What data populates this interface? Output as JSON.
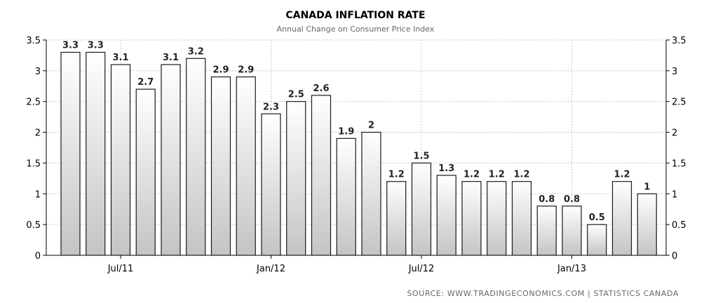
{
  "chart_data": {
    "type": "bar",
    "title": "CANADA INFLATION RATE",
    "subtitle": "Annual Change on Consumer Price Index",
    "source": "SOURCE:  WWW.TRADINGECONOMICS.COM  |  STATISTICS  CANADA",
    "ylim": [
      0,
      3.5
    ],
    "yticks": [
      0,
      0.5,
      1,
      1.5,
      2,
      2.5,
      3,
      3.5
    ],
    "ytick_labels": [
      "0",
      "0.5",
      "1",
      "1.5",
      "2",
      "2.5",
      "3",
      "3.5"
    ],
    "categories": [
      "May/11",
      "Jun/11",
      "Jul/11",
      "Aug/11",
      "Sep/11",
      "Oct/11",
      "Nov/11",
      "Dec/11",
      "Jan/12",
      "Feb/12",
      "Mar/12",
      "Apr/12",
      "May/12",
      "Jun/12",
      "Jul/12",
      "Aug/12",
      "Sep/12",
      "Oct/12",
      "Nov/12",
      "Dec/12",
      "Jan/13",
      "Feb/13",
      "Mar/13",
      "Apr/13"
    ],
    "values": [
      3.3,
      3.3,
      3.1,
      2.7,
      3.1,
      3.2,
      2.9,
      2.9,
      2.3,
      2.5,
      2.6,
      1.9,
      2.0,
      1.2,
      1.5,
      1.3,
      1.2,
      1.2,
      1.2,
      0.8,
      0.8,
      0.5,
      1.2,
      1.0
    ],
    "data_labels": [
      "3.3",
      "3.3",
      "3.1",
      "2.7",
      "3.1",
      "3.2",
      "2.9",
      "2.9",
      "2.3",
      "2.5",
      "2.6",
      "1.9",
      "2",
      "1.2",
      "1.5",
      "1.3",
      "1.2",
      "1.2",
      "1.2",
      "0.8",
      "0.8",
      "0.5",
      "1.2",
      "1"
    ],
    "xtick_labels": [
      {
        "label": "Jul/11",
        "category": "Jul/11"
      },
      {
        "label": "Jan/12",
        "category": "Jan/12"
      },
      {
        "label": "Jul/12",
        "category": "Jul/12"
      },
      {
        "label": "Jan/13",
        "category": "Jan/13"
      }
    ],
    "grid": true,
    "dual_y_axis": true,
    "colors": {
      "bar_top": "#ffffff",
      "bar_bottom": "#c4c4c4",
      "bar_stroke": "#1a1a1a",
      "grid": "#c8c8c8",
      "axis": "#000000"
    }
  }
}
